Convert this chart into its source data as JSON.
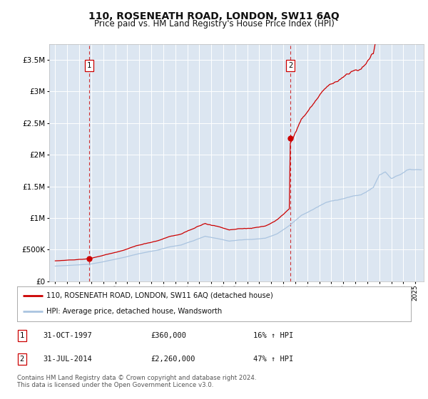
{
  "title": "110, ROSENEATH ROAD, LONDON, SW11 6AQ",
  "subtitle": "Price paid vs. HM Land Registry's House Price Index (HPI)",
  "plot_bg_color": "#dce6f1",
  "red_line_color": "#cc0000",
  "blue_line_color": "#aac4e0",
  "sale1_year_float": 1997.833,
  "sale1_price": 360000,
  "sale2_year_float": 2014.583,
  "sale2_price": 2260000,
  "ylim_max": 3750000,
  "yticks": [
    0,
    500000,
    1000000,
    1500000,
    2000000,
    2500000,
    3000000,
    3500000
  ],
  "ytick_labels": [
    "£0",
    "£500K",
    "£1M",
    "£1.5M",
    "£2M",
    "£2.5M",
    "£3M",
    "£3.5M"
  ],
  "x_start_year": 1995,
  "x_end_year": 2025,
  "legend_line1": "110, ROSENEATH ROAD, LONDON, SW11 6AQ (detached house)",
  "legend_line2": "HPI: Average price, detached house, Wandsworth",
  "row1_num": "1",
  "row1_date": "31-OCT-1997",
  "row1_price": "£360,000",
  "row1_hpi": "16% ↑ HPI",
  "row2_num": "2",
  "row2_date": "31-JUL-2014",
  "row2_price": "£2,260,000",
  "row2_hpi": "47% ↑ HPI",
  "footnote_line1": "Contains HM Land Registry data © Crown copyright and database right 2024.",
  "footnote_line2": "This data is licensed under the Open Government Licence v3.0."
}
